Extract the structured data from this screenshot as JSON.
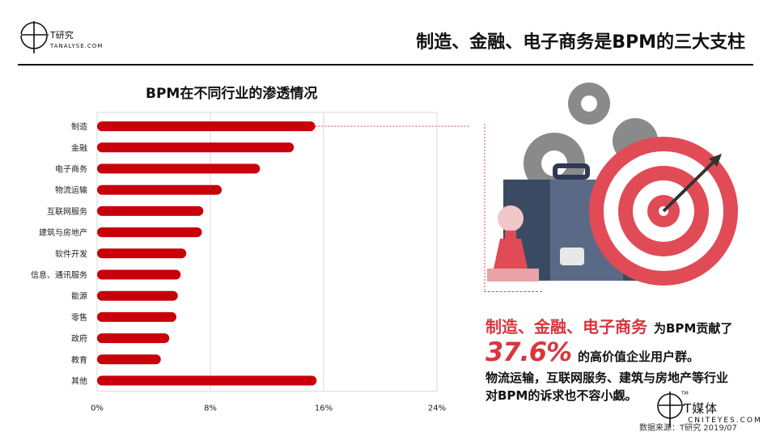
{
  "header": {
    "logo_text": "T研究",
    "logo_sub": "TANALYSE.COM",
    "title": "制造、金融、电子商务是BPM的三大支柱"
  },
  "chart_title": "BPM在不同行业的渗透情况",
  "chart_data": {
    "type": "bar",
    "orientation": "horizontal",
    "categories": [
      "制造",
      "金融",
      "电子商务",
      "物流运输",
      "互联网服务",
      "建筑与房地产",
      "软件开发",
      "信息、通讯服务",
      "能源",
      "零售",
      "政府",
      "教育",
      "其他"
    ],
    "values": [
      15.4,
      13.9,
      11.5,
      8.8,
      7.5,
      7.4,
      6.3,
      5.9,
      5.7,
      5.6,
      5.1,
      4.5,
      15.5
    ],
    "unit": "%",
    "xlim": [
      0,
      24
    ],
    "xticks": [
      "0%",
      "8%",
      "16%",
      "24%"
    ],
    "grid": true,
    "bar_color": "#c8000a"
  },
  "claims": {
    "line1_red": "制造、金融、电子商务",
    "line1_black": "为BPM贡献了",
    "line2_pct": "37.6%",
    "line2_black": "的高价值企业用户群。",
    "line3a": "物流运输，互联网服务、建筑与房地产等行业",
    "line3b": "对BPM的诉求也不容小觑。"
  },
  "footer": {
    "brand_name": "T媒体",
    "brand_url": "CNITEYES.COM",
    "tm": "TM",
    "source": "数据来源：T研究 2019/07"
  },
  "colors": {
    "accent_red": "#d9363e",
    "bar_red": "#c8000a",
    "gear_gray": "#8a8a8a",
    "case_navy": "#3b4a63"
  },
  "icons": [
    "gear-icon",
    "briefcase-icon",
    "target-icon",
    "pawn-icon",
    "arrow-icon"
  ]
}
